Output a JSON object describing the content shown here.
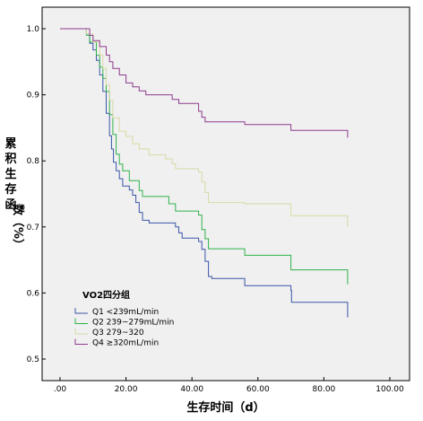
{
  "chart_data": {
    "type": "line",
    "step": true,
    "xlabel": "生存时间（d）",
    "ylabel": "累积生存函数（%）",
    "xlim": [
      0,
      100
    ],
    "ylim": [
      0.5,
      1.0
    ],
    "x_ticks": [
      ".00",
      "20.00",
      "40.00",
      "60.00",
      "80.00",
      "100.00"
    ],
    "x_tick_values": [
      0,
      20,
      40,
      60,
      80,
      100
    ],
    "y_ticks": [
      "0.5",
      "0.6",
      "0.7",
      "0.8",
      "0.9",
      "1.0"
    ],
    "y_tick_values": [
      0.5,
      0.6,
      0.7,
      0.8,
      0.9,
      1.0
    ],
    "grid": false,
    "background": "#f0f0f0",
    "legend": {
      "title": "VO2四分组",
      "placement": "bottom-left"
    },
    "series": [
      {
        "name": "Q1 <239mL/min",
        "color": "#3a55a8",
        "points": [
          [
            0,
            1.0
          ],
          [
            7,
            1.0
          ],
          [
            8,
            0.992
          ],
          [
            9,
            0.978
          ],
          [
            10,
            0.968
          ],
          [
            11,
            0.952
          ],
          [
            12,
            0.93
          ],
          [
            13,
            0.905
          ],
          [
            14,
            0.872
          ],
          [
            15,
            0.838
          ],
          [
            15.6,
            0.818
          ],
          [
            16.2,
            0.798
          ],
          [
            17,
            0.785
          ],
          [
            18,
            0.773
          ],
          [
            19,
            0.762
          ],
          [
            21,
            0.756
          ],
          [
            22,
            0.748
          ],
          [
            23,
            0.737
          ],
          [
            24,
            0.722
          ],
          [
            25,
            0.71
          ],
          [
            27,
            0.706
          ],
          [
            35,
            0.7
          ],
          [
            36,
            0.691
          ],
          [
            37,
            0.683
          ],
          [
            42,
            0.678
          ],
          [
            43,
            0.666
          ],
          [
            44,
            0.648
          ],
          [
            45,
            0.625
          ],
          [
            46,
            0.622
          ],
          [
            56,
            0.611
          ],
          [
            70,
            0.604
          ],
          [
            70.2,
            0.586
          ],
          [
            87,
            0.586
          ],
          [
            87.2,
            0.563
          ]
        ]
      },
      {
        "name": "Q2 239~279mL/min",
        "color": "#2fb24a",
        "points": [
          [
            0,
            1.0
          ],
          [
            8,
            0.99
          ],
          [
            9,
            0.98
          ],
          [
            11,
            0.96
          ],
          [
            12,
            0.942
          ],
          [
            13,
            0.925
          ],
          [
            14,
            0.905
          ],
          [
            15,
            0.87
          ],
          [
            16,
            0.84
          ],
          [
            17,
            0.81
          ],
          [
            18,
            0.795
          ],
          [
            19,
            0.785
          ],
          [
            21,
            0.77
          ],
          [
            24,
            0.755
          ],
          [
            25,
            0.746
          ],
          [
            33,
            0.735
          ],
          [
            35,
            0.724
          ],
          [
            42,
            0.718
          ],
          [
            43,
            0.696
          ],
          [
            44,
            0.682
          ],
          [
            45,
            0.667
          ],
          [
            56,
            0.657
          ],
          [
            70,
            0.635
          ],
          [
            87,
            0.635
          ],
          [
            87.2,
            0.613
          ]
        ]
      },
      {
        "name": "Q3 279~320",
        "color": "#d9d9a6",
        "points": [
          [
            0,
            1.0
          ],
          [
            8,
            0.992
          ],
          [
            10,
            0.98
          ],
          [
            12,
            0.96
          ],
          [
            13,
            0.94
          ],
          [
            14,
            0.915
          ],
          [
            15,
            0.892
          ],
          [
            16,
            0.865
          ],
          [
            18,
            0.845
          ],
          [
            20,
            0.837
          ],
          [
            22,
            0.826
          ],
          [
            24,
            0.818
          ],
          [
            27,
            0.809
          ],
          [
            32,
            0.803
          ],
          [
            34,
            0.796
          ],
          [
            35,
            0.788
          ],
          [
            42,
            0.783
          ],
          [
            43,
            0.768
          ],
          [
            44,
            0.752
          ],
          [
            45,
            0.737
          ],
          [
            56,
            0.735
          ],
          [
            70,
            0.717
          ],
          [
            87,
            0.717
          ],
          [
            87.2,
            0.7
          ]
        ]
      },
      {
        "name": "Q4 ≥320mL/min",
        "color": "#8e3a8e",
        "points": [
          [
            0,
            1.0
          ],
          [
            9,
            0.99
          ],
          [
            10,
            0.982
          ],
          [
            12,
            0.973
          ],
          [
            14,
            0.96
          ],
          [
            15,
            0.95
          ],
          [
            16,
            0.94
          ],
          [
            18,
            0.93
          ],
          [
            20,
            0.918
          ],
          [
            22,
            0.912
          ],
          [
            24,
            0.906
          ],
          [
            26,
            0.9
          ],
          [
            34,
            0.893
          ],
          [
            36,
            0.887
          ],
          [
            42,
            0.875
          ],
          [
            43,
            0.866
          ],
          [
            44,
            0.859
          ],
          [
            56,
            0.855
          ],
          [
            70,
            0.846
          ],
          [
            87,
            0.846
          ],
          [
            87.2,
            0.835
          ]
        ]
      }
    ]
  }
}
